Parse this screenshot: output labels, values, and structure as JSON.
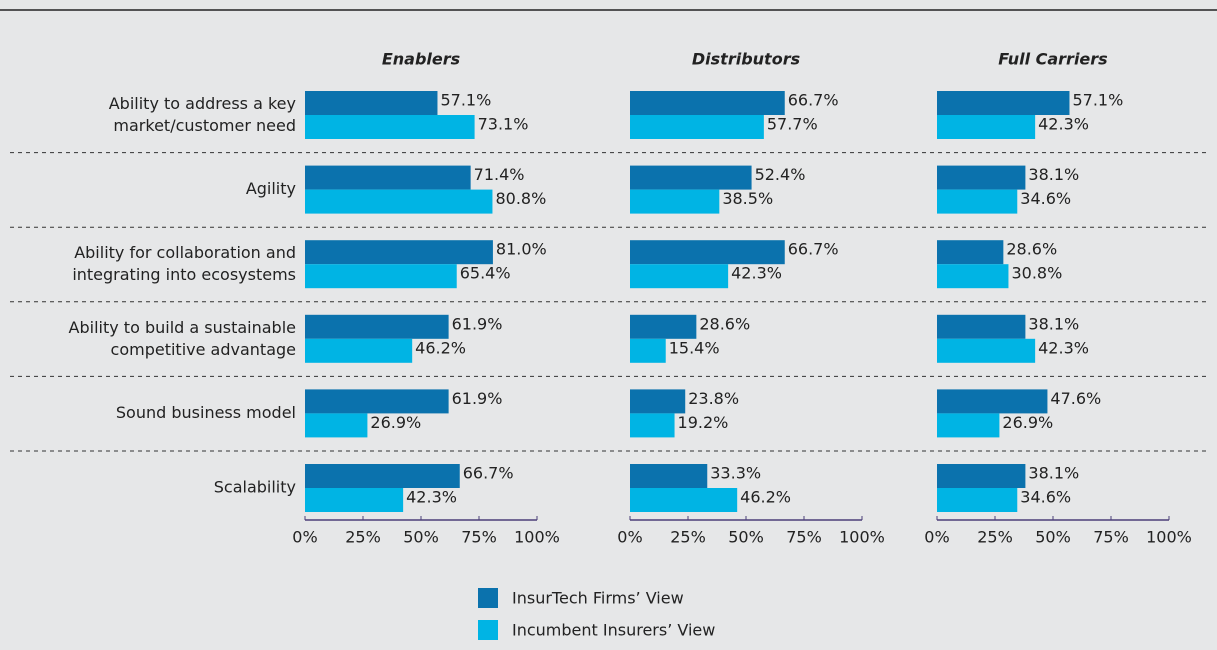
{
  "chart_data": {
    "type": "bar",
    "orientation": "horizontal",
    "categories": [
      "Ability to address a key\nmarket/customer need",
      "Agility",
      "Ability for collaboration and\nintegrating into ecosystems",
      "Ability to build a sustainable\ncompetitive advantage",
      "Sound business model",
      "Scalability"
    ],
    "series": [
      {
        "name": "InsurTech Firms’ View",
        "color": "#0b72ad"
      },
      {
        "name": "Incumbent Insurers’ View",
        "color": "#00b4e4"
      }
    ],
    "panels": [
      {
        "title": "Enablers",
        "values": [
          [
            57.1,
            71.4,
            81.0,
            61.9,
            61.9,
            66.7
          ],
          [
            73.1,
            80.8,
            65.4,
            46.2,
            26.9,
            42.3
          ]
        ],
        "value_labels": [
          [
            "57.1%",
            "71.4%",
            "81.0%",
            "61.9%",
            "61.9%",
            "66.7%"
          ],
          [
            "73.1%",
            "80.8%",
            "65.4%",
            "46.2%",
            "26.9%",
            "42.3%"
          ]
        ]
      },
      {
        "title": "Distributors",
        "values": [
          [
            66.7,
            52.4,
            66.7,
            28.6,
            23.8,
            33.3
          ],
          [
            57.7,
            38.5,
            42.3,
            15.4,
            19.2,
            46.2
          ]
        ],
        "value_labels": [
          [
            "66.7%",
            "52.4%",
            "66.7%",
            "28.6%",
            "23.8%",
            "33.3%"
          ],
          [
            "57.7%",
            "38.5%",
            "42.3%",
            "15.4%",
            "19.2%",
            "46.2%"
          ]
        ]
      },
      {
        "title": "Full Carriers",
        "values": [
          [
            57.1,
            38.1,
            28.6,
            38.1,
            47.6,
            38.1
          ],
          [
            42.3,
            34.6,
            30.8,
            42.3,
            26.9,
            34.6
          ]
        ],
        "value_labels": [
          [
            "57.1%",
            "38.1%",
            "28.6%",
            "38.1%",
            "47.6%",
            "38.1%"
          ],
          [
            "42.3%",
            "34.6%",
            "30.8%",
            "42.3%",
            "26.9%",
            "34.6%"
          ]
        ]
      }
    ],
    "xlim": [
      0,
      100
    ],
    "xticks": [
      {
        "value": 0,
        "label": "0%"
      },
      {
        "value": 25,
        "label": "25%"
      },
      {
        "value": 50,
        "label": "50%"
      },
      {
        "value": 75,
        "label": "75%"
      },
      {
        "value": 100,
        "label": "100%"
      }
    ],
    "legend": "bottom"
  }
}
